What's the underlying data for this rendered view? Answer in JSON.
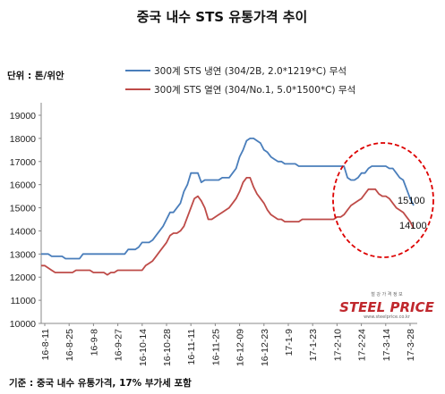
{
  "chart_data": {
    "type": "line",
    "title": "중국 내수 STS 유통가격 추이",
    "unit_label": "단위 : 톤/위안",
    "footnote": "기준 : 중국 내수 유통가격, 17% 부가세 포함",
    "logo_text": "STEEL PRICE",
    "logo_small": "철 강 가 격 정 보",
    "logo_url": "www.steelprice.co.kr",
    "ylim": [
      10000,
      19000
    ],
    "yticks": [
      10000,
      11000,
      12000,
      13000,
      14000,
      15000,
      16000,
      17000,
      18000,
      19000
    ],
    "grid": false,
    "legend_position": "top-left",
    "colors": {
      "series1": "#4a7ebb",
      "series2": "#be4b48",
      "highlight": "#dd0000"
    },
    "x_tick_labels": [
      "16-8-11",
      "16-8-25",
      "16-9-8",
      "16-9-27",
      "16-10-14",
      "16-10-28",
      "16-11-11",
      "16-11-25",
      "16-12-09",
      "16-12-23",
      "17-1-9",
      "17-1-23",
      "17-2-10",
      "17-2-24",
      "17-3-14",
      "17-3-28"
    ],
    "end_labels": [
      {
        "series": 0,
        "text": "15100"
      },
      {
        "series": 1,
        "text": "14100"
      }
    ],
    "series": [
      {
        "name": "300계 STS 냉연 (304/2B, 2.0*1219*C) 무석",
        "values": [
          13000,
          13000,
          13000,
          12900,
          12900,
          12900,
          12900,
          12800,
          12800,
          12800,
          12800,
          12800,
          13000,
          13000,
          13000,
          13000,
          13000,
          13000,
          13000,
          13000,
          13000,
          13000,
          13000,
          13000,
          13000,
          13200,
          13200,
          13200,
          13300,
          13500,
          13500,
          13500,
          13600,
          13800,
          14000,
          14200,
          14500,
          14800,
          14800,
          15000,
          15200,
          15700,
          16000,
          16500,
          16500,
          16500,
          16100,
          16200,
          16200,
          16200,
          16200,
          16200,
          16300,
          16300,
          16300,
          16500,
          16700,
          17200,
          17500,
          17900,
          18000,
          18000,
          17900,
          17800,
          17500,
          17400,
          17200,
          17100,
          17000,
          17000,
          16900,
          16900,
          16900,
          16900,
          16800,
          16800,
          16800,
          16800,
          16800,
          16800,
          16800,
          16800,
          16800,
          16800,
          16800,
          16800,
          16800,
          16800,
          16300,
          16200,
          16200,
          16300,
          16500,
          16500,
          16700,
          16800,
          16800,
          16800,
          16800,
          16800,
          16700,
          16700,
          16500,
          16300,
          16200,
          15800,
          15400,
          15100
        ]
      },
      {
        "name": "300계 STS 열연 (304/No.1, 5.0*1500*C) 무석",
        "values": [
          12500,
          12500,
          12400,
          12300,
          12200,
          12200,
          12200,
          12200,
          12200,
          12200,
          12300,
          12300,
          12300,
          12300,
          12300,
          12200,
          12200,
          12200,
          12200,
          12100,
          12200,
          12200,
          12300,
          12300,
          12300,
          12300,
          12300,
          12300,
          12300,
          12300,
          12500,
          12600,
          12700,
          12900,
          13100,
          13300,
          13500,
          13800,
          13900,
          13900,
          14000,
          14200,
          14600,
          15000,
          15400,
          15500,
          15300,
          15000,
          14500,
          14500,
          14600,
          14700,
          14800,
          14900,
          15000,
          15200,
          15400,
          15700,
          16100,
          16300,
          16300,
          15900,
          15600,
          15400,
          15200,
          14900,
          14700,
          14600,
          14500,
          14500,
          14400,
          14400,
          14400,
          14400,
          14400,
          14500,
          14500,
          14500,
          14500,
          14500,
          14500,
          14500,
          14500,
          14500,
          14500,
          14600,
          14600,
          14700,
          14900,
          15100,
          15200,
          15300,
          15400,
          15600,
          15800,
          15800,
          15800,
          15600,
          15500,
          15500,
          15400,
          15200,
          15000,
          14900,
          14800,
          14600,
          14400,
          14100
        ]
      }
    ]
  }
}
